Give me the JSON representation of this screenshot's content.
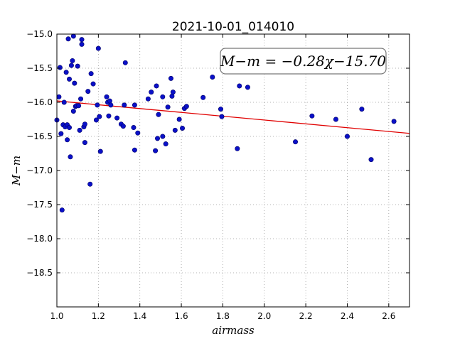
{
  "chart_data": {
    "type": "scatter",
    "title": "2021-10-01_014010",
    "xlabel": "airmass",
    "ylabel": "M−m",
    "annotation": "M−m = −0.28χ−15.70",
    "xlim": [
      1.0,
      2.7
    ],
    "ylim": [
      -15.0,
      -19.0
    ],
    "y_inverted": true,
    "grid": true,
    "x_ticks": [
      "1.0",
      "1.2",
      "1.4",
      "1.6",
      "1.8",
      "2.0",
      "2.2",
      "2.4",
      "2.6"
    ],
    "y_ticks": [
      "−15.0",
      "−15.5",
      "−16.0",
      "−16.5",
      "−17.0",
      "−17.5",
      "−18.0",
      "−18.5"
    ],
    "fit_line": {
      "slope": -0.28,
      "intercept": -15.7
    },
    "colors": {
      "points": "#0a10c8",
      "fit": "#e00000"
    },
    "points": [
      [
        1.0,
        -16.26
      ],
      [
        1.01,
        -15.92
      ],
      [
        1.015,
        -15.49
      ],
      [
        1.02,
        -16.46
      ],
      [
        1.025,
        -17.58
      ],
      [
        1.03,
        -16.33
      ],
      [
        1.035,
        -16.0
      ],
      [
        1.04,
        -16.36
      ],
      [
        1.045,
        -15.56
      ],
      [
        1.05,
        -16.33
      ],
      [
        1.05,
        -16.55
      ],
      [
        1.055,
        -15.07
      ],
      [
        1.06,
        -15.66
      ],
      [
        1.06,
        -16.37
      ],
      [
        1.065,
        -16.8
      ],
      [
        1.07,
        -15.46
      ],
      [
        1.075,
        -15.39
      ],
      [
        1.08,
        -15.03
      ],
      [
        1.08,
        -16.13
      ],
      [
        1.085,
        -15.72
      ],
      [
        1.09,
        -16.06
      ],
      [
        1.095,
        -16.05
      ],
      [
        1.1,
        -15.47
      ],
      [
        1.105,
        -16.05
      ],
      [
        1.11,
        -16.41
      ],
      [
        1.115,
        -15.95
      ],
      [
        1.12,
        -15.08
      ],
      [
        1.12,
        -15.15
      ],
      [
        1.13,
        -16.36
      ],
      [
        1.135,
        -16.32
      ],
      [
        1.135,
        -16.59
      ],
      [
        1.15,
        -15.84
      ],
      [
        1.16,
        -17.2
      ],
      [
        1.165,
        -15.58
      ],
      [
        1.175,
        -15.73
      ],
      [
        1.19,
        -16.26
      ],
      [
        1.195,
        -16.04
      ],
      [
        1.2,
        -15.21
      ],
      [
        1.205,
        -16.21
      ],
      [
        1.21,
        -16.72
      ],
      [
        1.24,
        -15.92
      ],
      [
        1.245,
        -16.0
      ],
      [
        1.25,
        -16.2
      ],
      [
        1.255,
        -15.98
      ],
      [
        1.26,
        -16.04
      ],
      [
        1.29,
        -16.23
      ],
      [
        1.31,
        -16.32
      ],
      [
        1.32,
        -16.35
      ],
      [
        1.325,
        -16.04
      ],
      [
        1.33,
        -15.42
      ],
      [
        1.37,
        -16.37
      ],
      [
        1.375,
        -16.04
      ],
      [
        1.375,
        -16.7
      ],
      [
        1.39,
        -16.45
      ],
      [
        1.44,
        -15.95
      ],
      [
        1.455,
        -15.85
      ],
      [
        1.475,
        -16.71
      ],
      [
        1.48,
        -15.76
      ],
      [
        1.485,
        -16.53
      ],
      [
        1.49,
        -16.18
      ],
      [
        1.51,
        -15.92
      ],
      [
        1.51,
        -16.5
      ],
      [
        1.525,
        -16.61
      ],
      [
        1.535,
        -16.07
      ],
      [
        1.55,
        -15.65
      ],
      [
        1.555,
        -15.91
      ],
      [
        1.56,
        -15.85
      ],
      [
        1.57,
        -16.41
      ],
      [
        1.59,
        -16.25
      ],
      [
        1.605,
        -16.38
      ],
      [
        1.615,
        -16.09
      ],
      [
        1.625,
        -16.06
      ],
      [
        1.705,
        -15.93
      ],
      [
        1.75,
        -15.63
      ],
      [
        1.79,
        -16.1
      ],
      [
        1.795,
        -16.21
      ],
      [
        1.87,
        -16.68
      ],
      [
        1.88,
        -15.76
      ],
      [
        1.92,
        -15.78
      ],
      [
        2.15,
        -16.58
      ],
      [
        2.23,
        -16.2
      ],
      [
        2.345,
        -16.25
      ],
      [
        2.4,
        -16.5
      ],
      [
        2.47,
        -16.1
      ],
      [
        2.515,
        -16.84
      ],
      [
        2.625,
        -16.28
      ]
    ]
  }
}
